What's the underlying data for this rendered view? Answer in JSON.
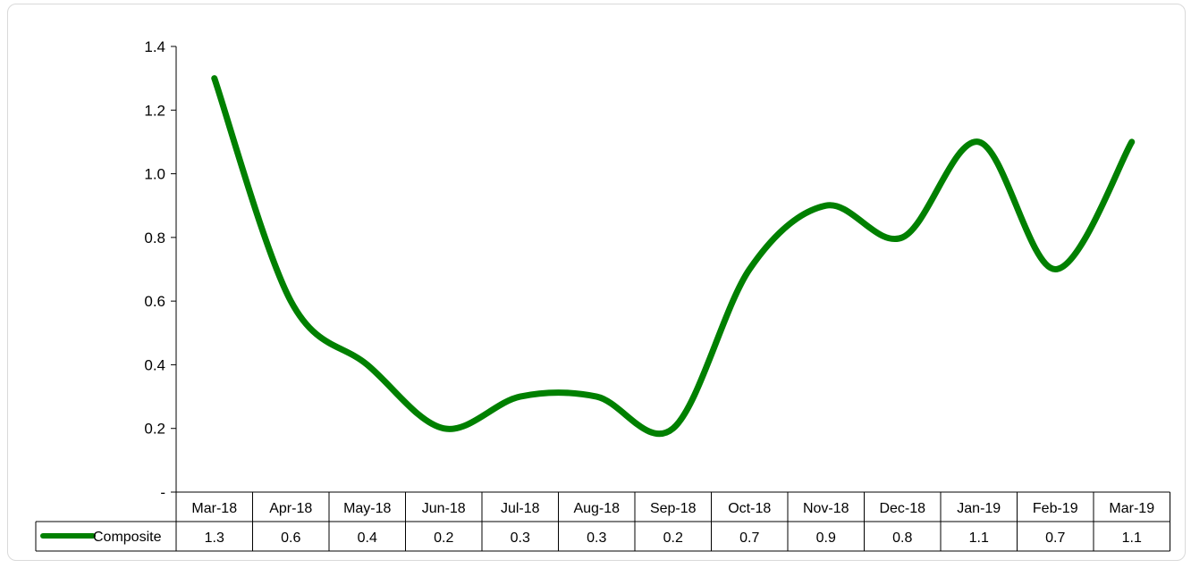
{
  "chart_data": {
    "type": "line",
    "categories": [
      "Mar-18",
      "Apr-18",
      "May-18",
      "Jun-18",
      "Jul-18",
      "Aug-18",
      "Sep-18",
      "Oct-18",
      "Nov-18",
      "Dec-18",
      "Jan-19",
      "Feb-19",
      "Mar-19"
    ],
    "series": [
      {
        "name": "Composite",
        "values": [
          1.3,
          0.6,
          0.4,
          0.2,
          0.3,
          0.3,
          0.2,
          0.7,
          0.9,
          0.8,
          1.1,
          0.7,
          1.1
        ],
        "color": "#008000"
      }
    ],
    "yticks": [
      "-",
      "0.2",
      "0.4",
      "0.6",
      "0.8",
      "1.0",
      "1.2",
      "1.4"
    ],
    "ylim": [
      0,
      1.4
    ],
    "data_table": true,
    "grid": false,
    "legend": "in data table"
  }
}
